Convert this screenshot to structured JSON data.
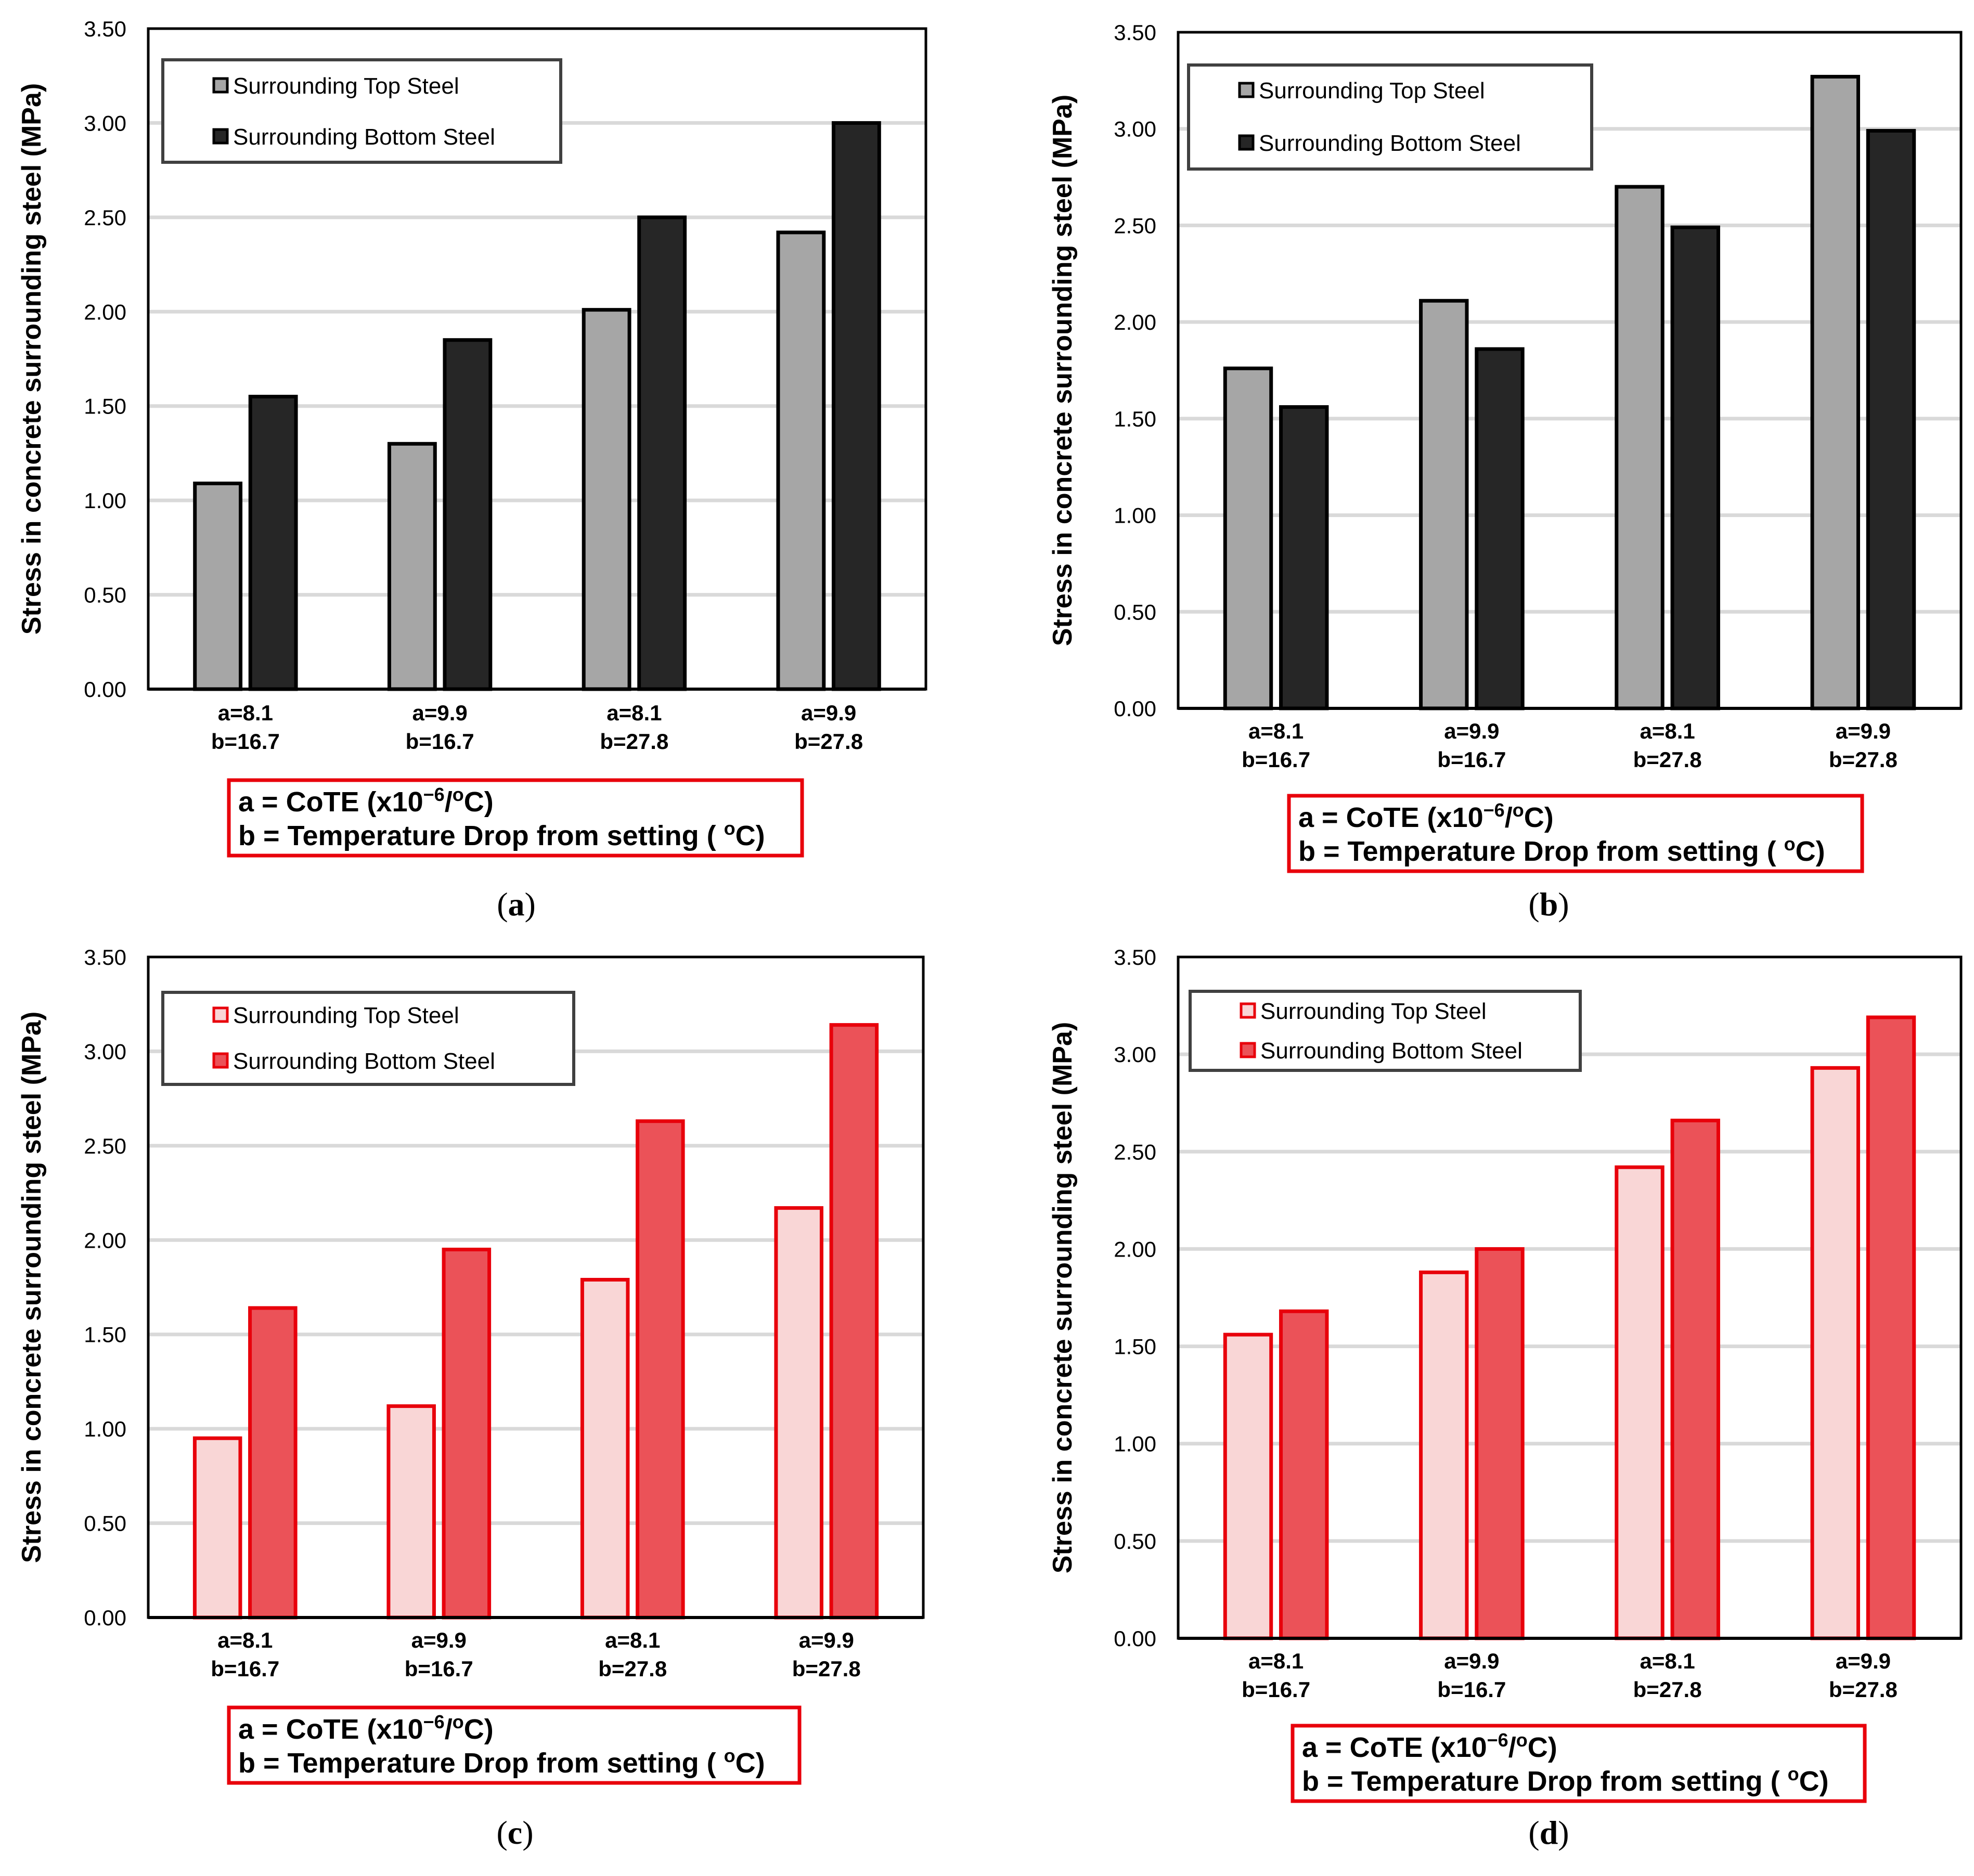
{
  "figure": {
    "note_line1_prefix": "a = CoTE (x10",
    "note_line1_sup": "−6",
    "note_line1_suffix": "/",
    "note_line1_unit_sup": "o",
    "note_line1_unit_end": "C)",
    "note_line2_prefix": "b = Temperature Drop from setting (",
    "note_line2_sup": "o",
    "note_line2_suffix": "C)"
  },
  "chart_data": [
    {
      "panel": "a",
      "type": "bar",
      "ylabel": "Stress in concrete surrounding steel (MPa)",
      "ylim": [
        0,
        3.5
      ],
      "yticks": [
        "0.00",
        "0.50",
        "1.00",
        "1.50",
        "2.00",
        "2.50",
        "3.00",
        "3.50"
      ],
      "grid": true,
      "legend_position": "top-left",
      "categories": [
        [
          "a=8.1",
          "b=16.7"
        ],
        [
          "a=9.9",
          "b=16.7"
        ],
        [
          "a=8.1",
          "b=27.8"
        ],
        [
          "a=9.9",
          "b=27.8"
        ]
      ],
      "series": [
        {
          "name": "Surrounding Top Steel",
          "values": [
            1.09,
            1.3,
            2.01,
            2.42
          ],
          "color": "#a6a6a6",
          "stroke": "#000000"
        },
        {
          "name": "Surrounding Bottom Steel",
          "values": [
            1.55,
            1.85,
            2.5,
            3.0
          ],
          "color": "#262626",
          "stroke": "#000000"
        }
      ],
      "caption": "a"
    },
    {
      "panel": "b",
      "type": "bar",
      "ylabel": "Stress in concrete surrounding steel (MPa)",
      "ylim": [
        0,
        3.5
      ],
      "yticks": [
        "0.00",
        "0.50",
        "1.00",
        "1.50",
        "2.00",
        "2.50",
        "3.00",
        "3.50"
      ],
      "grid": true,
      "legend_position": "top-left",
      "categories": [
        [
          "a=8.1",
          "b=16.7"
        ],
        [
          "a=9.9",
          "b=16.7"
        ],
        [
          "a=8.1",
          "b=27.8"
        ],
        [
          "a=9.9",
          "b=27.8"
        ]
      ],
      "series": [
        {
          "name": "Surrounding Top Steel",
          "values": [
            1.76,
            2.11,
            2.7,
            3.27
          ],
          "color": "#a6a6a6",
          "stroke": "#000000"
        },
        {
          "name": "Surrounding Bottom Steel",
          "values": [
            1.56,
            1.86,
            2.49,
            2.99
          ],
          "color": "#262626",
          "stroke": "#000000"
        }
      ],
      "caption": "b"
    },
    {
      "panel": "c",
      "type": "bar",
      "ylabel": "Stress in concrete surrounding steel (MPa)",
      "ylim": [
        0,
        3.5
      ],
      "yticks": [
        "0.00",
        "0.50",
        "1.00",
        "1.50",
        "2.00",
        "2.50",
        "3.00",
        "3.50"
      ],
      "grid": true,
      "legend_position": "top-left",
      "categories": [
        [
          "a=8.1",
          "b=16.7"
        ],
        [
          "a=9.9",
          "b=16.7"
        ],
        [
          "a=8.1",
          "b=27.8"
        ],
        [
          "a=9.9",
          "b=27.8"
        ]
      ],
      "series": [
        {
          "name": "Surrounding Top Steel",
          "values": [
            0.95,
            1.12,
            1.79,
            2.17
          ],
          "color": "#f9d6d6",
          "stroke": "#e8000b"
        },
        {
          "name": "Surrounding Bottom Steel",
          "values": [
            1.64,
            1.95,
            2.63,
            3.14
          ],
          "color": "#eb5258",
          "stroke": "#e8000b"
        }
      ],
      "caption": "c"
    },
    {
      "panel": "d",
      "type": "bar",
      "ylabel": "Stress in concrete surrounding steel (MPa)",
      "ylim": [
        0,
        3.5
      ],
      "yticks": [
        "0.00",
        "0.50",
        "1.00",
        "1.50",
        "2.00",
        "2.50",
        "3.00",
        "3.50"
      ],
      "grid": true,
      "legend_position": "top-left",
      "categories": [
        [
          "a=8.1",
          "b=16.7"
        ],
        [
          "a=9.9",
          "b=16.7"
        ],
        [
          "a=8.1",
          "b=27.8"
        ],
        [
          "a=9.9",
          "b=27.8"
        ]
      ],
      "series": [
        {
          "name": "Surrounding Top Steel",
          "values": [
            1.56,
            1.88,
            2.42,
            2.93
          ],
          "color": "#f9d6d6",
          "stroke": "#e8000b"
        },
        {
          "name": "Surrounding Bottom Steel",
          "values": [
            1.68,
            2.0,
            2.66,
            3.19
          ],
          "color": "#eb5258",
          "stroke": "#e8000b"
        }
      ],
      "caption": "d"
    }
  ]
}
